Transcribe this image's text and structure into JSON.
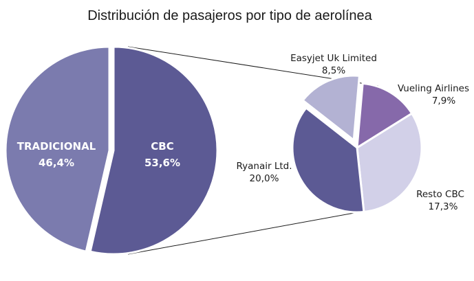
{
  "chart_data": {
    "type": "pie",
    "title": "Distribución de pasajeros por tipo de aerolínea",
    "main_pie": {
      "slices": [
        {
          "name": "TRADICIONAL",
          "value": 46.4,
          "label": "46,4%",
          "color": "#7b7bae"
        },
        {
          "name": "CBC",
          "value": 53.6,
          "label": "53,6%",
          "color": "#5c5a94"
        }
      ]
    },
    "detail_pie": {
      "of": "CBC",
      "slices": [
        {
          "name": "Easyjet Uk Limited",
          "value": 8.5,
          "label": "8,5%",
          "color": "#b3b2d3"
        },
        {
          "name": "Vueling Airlines",
          "value": 7.9,
          "label": "7,9%",
          "color": "#8669aa"
        },
        {
          "name": "Resto CBC",
          "value": 17.3,
          "label": "17,3%",
          "color": "#d2d0e8"
        },
        {
          "name": "Ryanair Ltd.",
          "value": 20.0,
          "label": "20,0%",
          "color": "#5c5a94"
        }
      ]
    },
    "grid": false,
    "legend": "none"
  }
}
